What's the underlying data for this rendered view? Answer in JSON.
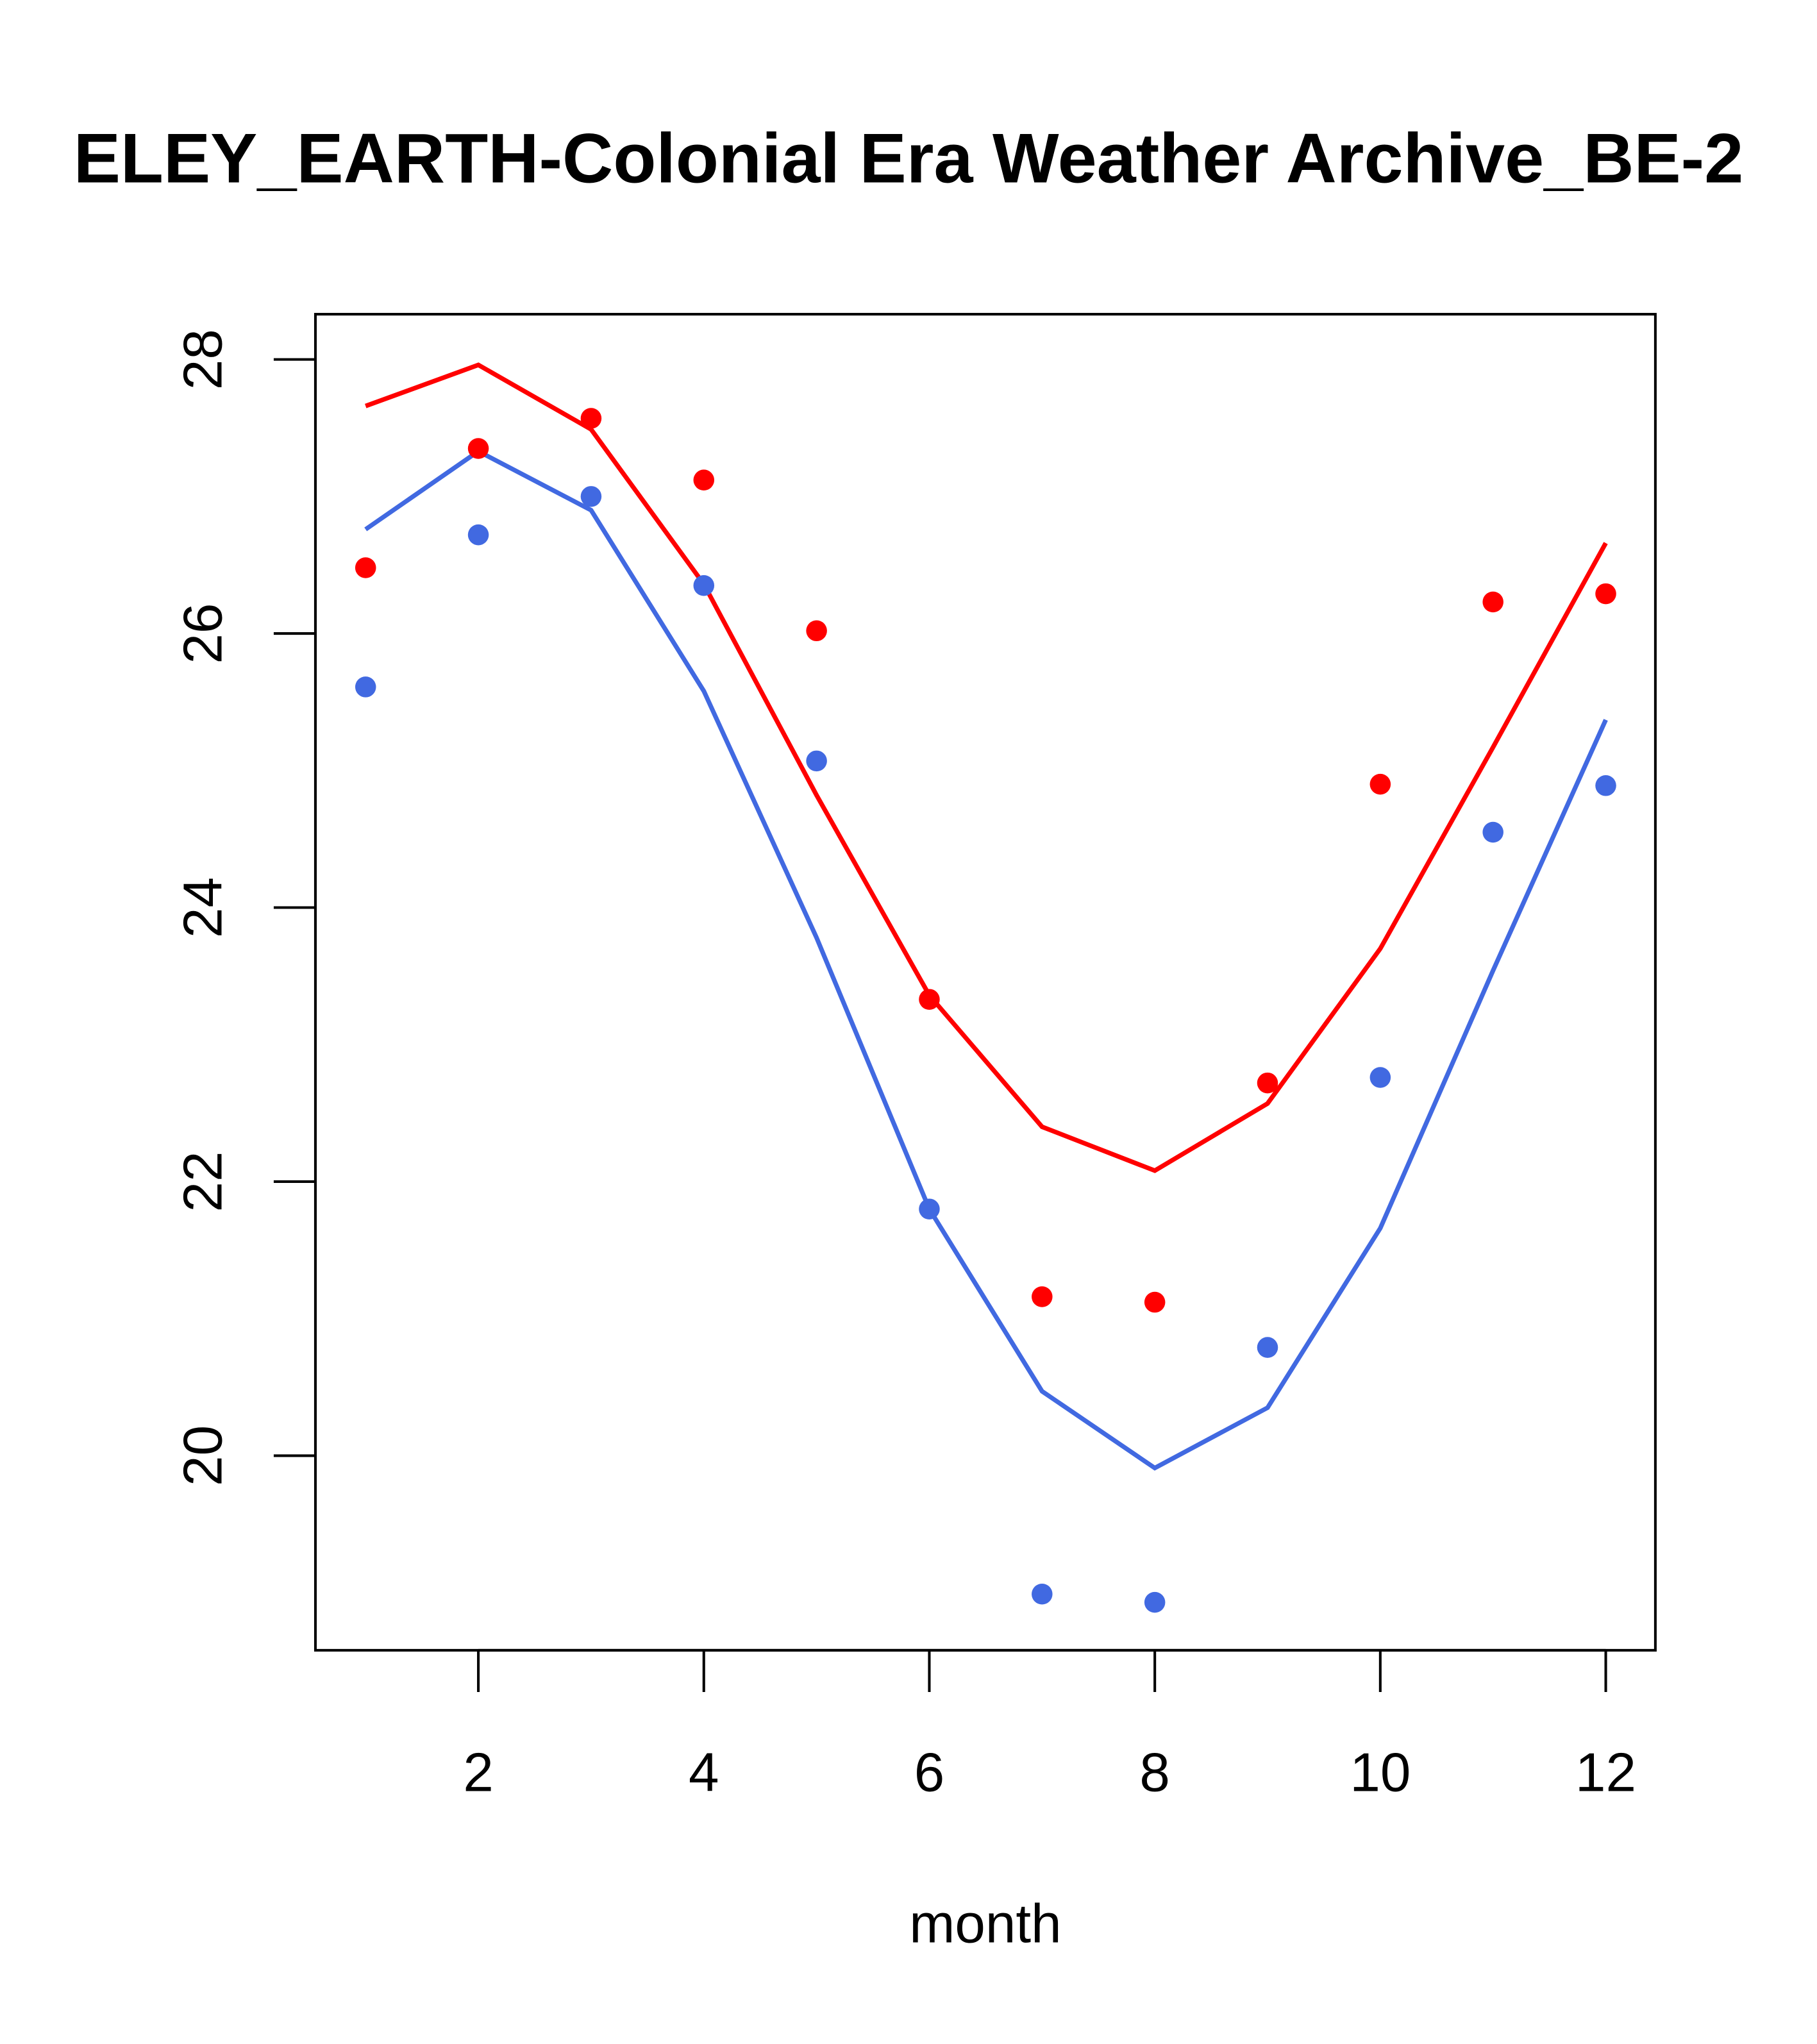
{
  "chart_data": {
    "type": "line",
    "title": "ELEY_EARTH-Colonial Era Weather Archive_BE-2",
    "xlabel": "month",
    "ylabel": "",
    "xlim": [
      0.555,
      12.44
    ],
    "ylim": [
      18.58,
      28.33
    ],
    "xticks": [
      2,
      4,
      6,
      8,
      10,
      12
    ],
    "xtick_labels": [
      "2",
      "4",
      "6",
      "8",
      "10",
      "12"
    ],
    "yticks": [
      20,
      22,
      24,
      26,
      28
    ],
    "ytick_labels": [
      "20",
      "22",
      "24",
      "26",
      "28"
    ],
    "grid": false,
    "x": [
      1,
      2,
      3,
      4,
      5,
      6,
      7,
      8,
      9,
      10,
      11,
      12
    ],
    "series": [
      {
        "name": "red-line",
        "kind": "line",
        "color": "#ff0000",
        "values": [
          27.66,
          27.96,
          27.49,
          26.36,
          24.82,
          23.36,
          22.4,
          22.08,
          22.57,
          23.7,
          25.17,
          26.66
        ]
      },
      {
        "name": "blue-line",
        "kind": "line",
        "color": "#4169e1",
        "values": [
          26.76,
          27.33,
          26.9,
          25.58,
          23.78,
          21.8,
          20.47,
          19.91,
          20.35,
          21.66,
          23.54,
          25.37
        ]
      },
      {
        "name": "red-points",
        "kind": "points",
        "color": "#ff0000",
        "values": [
          26.48,
          27.35,
          27.57,
          27.12,
          26.02,
          23.33,
          21.16,
          21.12,
          22.72,
          24.9,
          26.23,
          26.29
        ]
      },
      {
        "name": "blue-points",
        "kind": "points",
        "color": "#4169e1",
        "values": [
          25.61,
          26.72,
          27.0,
          26.35,
          25.07,
          21.8,
          18.99,
          18.93,
          20.79,
          22.76,
          24.55,
          24.89
        ]
      }
    ]
  }
}
